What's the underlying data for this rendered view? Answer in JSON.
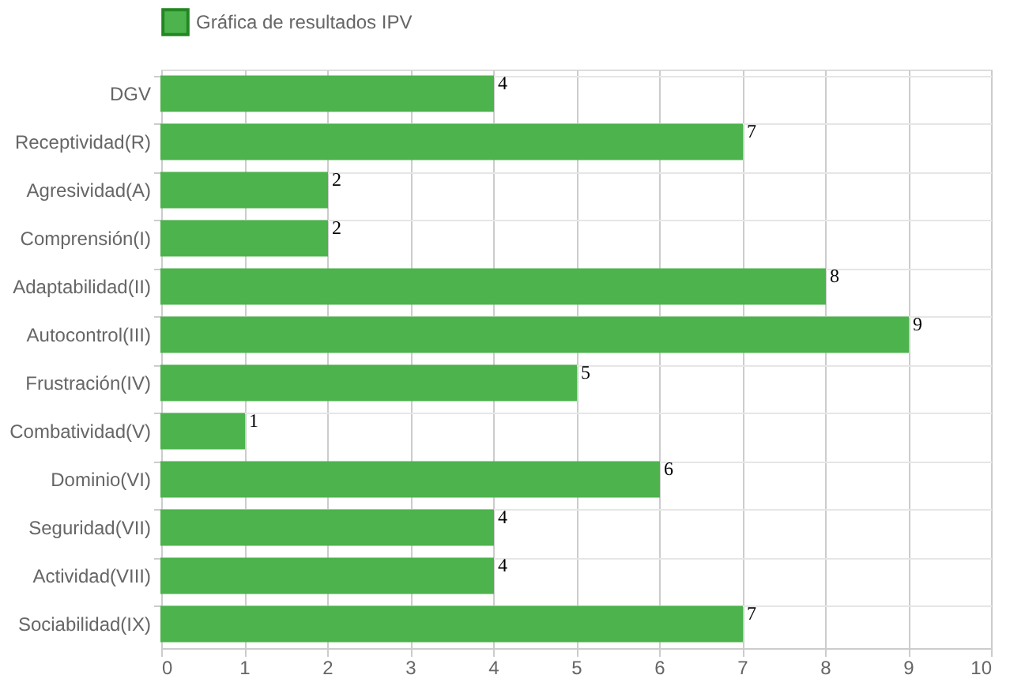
{
  "chart_data": {
    "type": "bar",
    "orientation": "horizontal",
    "categories": [
      "DGV",
      "Receptividad(R)",
      "Agresividad(A)",
      "Comprensión(I)",
      "Adaptabilidad(II)",
      "Autocontrol(III)",
      "Frustración(IV)",
      "Combatividad(V)",
      "Dominio(VI)",
      "Seguridad(VII)",
      "Actividad(VIII)",
      "Sociabilidad(IX)"
    ],
    "series": [
      {
        "name": "Gráfica de resultados IPV",
        "color": "#4db34d",
        "values": [
          4,
          7,
          2,
          2,
          8,
          9,
          5,
          1,
          6,
          4,
          4,
          7
        ]
      }
    ],
    "xlim": [
      0,
      10
    ],
    "xticks": [
      0,
      1,
      2,
      3,
      4,
      5,
      6,
      7,
      8,
      9,
      10
    ],
    "grid": true,
    "legend": "top",
    "data_labels": true
  }
}
